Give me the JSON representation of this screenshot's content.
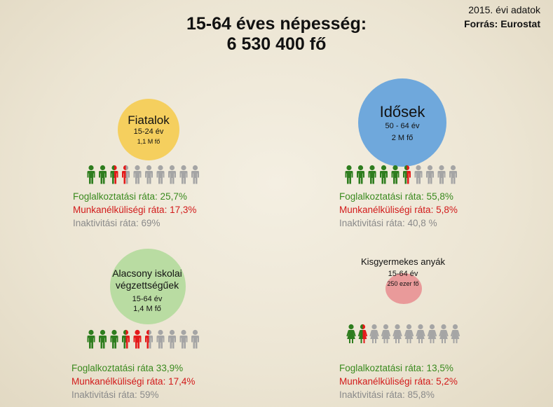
{
  "title": {
    "line1": "15-64 éves népesség:",
    "line2": "6 530 400 fő"
  },
  "meta": {
    "year": "2015. évi adatok",
    "source": "Forrás: Eurostat"
  },
  "colors": {
    "employed": "#2e7d1e",
    "unemployed": "#e41a1a",
    "inactive": "#a5a5a5",
    "young": "#f5cf5e",
    "old": "#6fa8dc",
    "low": "#b9dca2",
    "mom": "#e99a9a"
  },
  "groups": {
    "young": {
      "name": "Fiatalok",
      "age": "15-24 év",
      "size": "1,1 M fő",
      "icons": "person-icon",
      "count": 10,
      "employed": 2.5,
      "unemployed": 1,
      "employment": "Foglalkoztatási ráta: 25,7%",
      "unemployment": "Munkanélküliségi ráta: 17,3%",
      "inactivity": "Inaktivitási ráta: 69%"
    },
    "old": {
      "name": "Idősek",
      "age": "50 - 64 év",
      "size": "2 M fő",
      "icons": "person-icon",
      "count": 10,
      "employed": 5.5,
      "unemployed": 0.5,
      "employment": "Foglalkoztatási ráta: 55,8%",
      "unemployment": "Munkanélküliségi ráta: 5,8%",
      "inactivity": "Inaktivitási ráta: 40,8 %"
    },
    "low": {
      "name": "Alacsony iskolai végzettségűek",
      "name1": "Alacsony iskolai",
      "name2": "végzettségűek",
      "age": "15-64 év",
      "size": "1,4 M fő",
      "icons": "person-icon",
      "count": 10,
      "employed": 3.5,
      "unemployed": 2,
      "employment": "Foglalkoztatási ráta 33,9%",
      "unemployment": "Munkanélküliségi ráta: 17,4%",
      "inactivity": "Inaktivitási ráta: 59%"
    },
    "mom": {
      "name": "Kisgyermekes anyák",
      "age": "15-64 év",
      "size": "250 ezer fő",
      "icons": "woman-icon",
      "count": 10,
      "employed": 1.5,
      "unemployed": 0.5,
      "employment": "Foglalkoztatási ráta: 13,5%",
      "unemployment": "Munkanélküliségi ráta: 5,2%",
      "inactivity": "Inaktivitási ráta: 85,8%"
    }
  }
}
